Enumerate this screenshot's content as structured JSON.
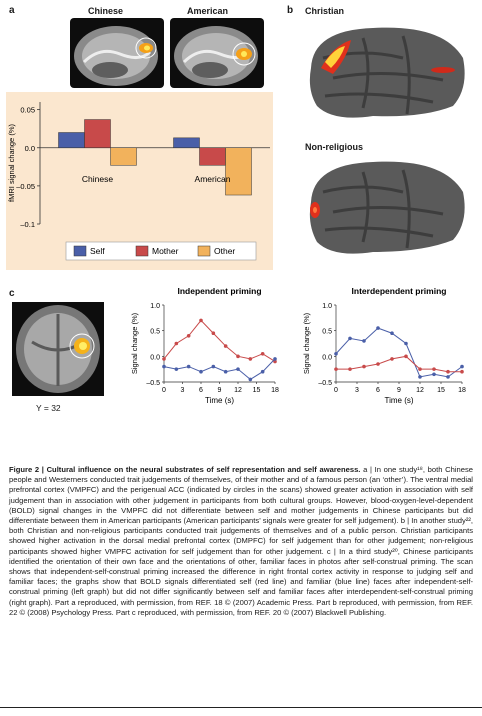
{
  "panel_a": {
    "letter": "a",
    "brain_labels": [
      "Chinese",
      "American"
    ],
    "chart_data": {
      "type": "bar",
      "categories": [
        "Chinese",
        "American"
      ],
      "series": [
        {
          "name": "Self",
          "values": [
            0.02,
            0.013
          ],
          "color": "#4a5fa8"
        },
        {
          "name": "Mother",
          "values": [
            0.037,
            -0.023
          ],
          "color": "#c84a4a"
        },
        {
          "name": "Other",
          "values": [
            -0.023,
            -0.062
          ],
          "color": "#f2b25c"
        }
      ],
      "ylabel": "fMRI signal change (%)",
      "ylim": [
        -0.1,
        0.06
      ],
      "yticks": [
        "0.05",
        "0.0",
        "–0.05",
        "–0.1"
      ],
      "ytick_values": [
        0.05,
        0,
        -0.05,
        -0.1
      ],
      "legend_position": "bottom"
    }
  },
  "panel_b": {
    "letter": "b",
    "labels": [
      "Christian",
      "Non-religious"
    ]
  },
  "panel_c": {
    "letter": "c",
    "scan_label": "Y = 32",
    "charts": [
      {
        "type": "line",
        "title": "Independent priming",
        "ylabel": "Signal change (%)",
        "xlabel": "Time (s)",
        "xticks": [
          0,
          3,
          6,
          9,
          12,
          15,
          18
        ],
        "yticks": [
          "1.0",
          "0.5",
          "0.0",
          "–0.5"
        ],
        "ytick_values": [
          1.0,
          0.5,
          0.0,
          -0.5
        ],
        "ylim": [
          -0.5,
          1.0
        ],
        "xlim": [
          0,
          18
        ],
        "x": [
          0,
          2,
          4,
          6,
          8,
          10,
          12,
          14,
          16,
          18
        ],
        "series": [
          {
            "name": "",
            "color": "#c84a4a",
            "values": [
              -0.05,
              0.25,
              0.4,
              0.7,
              0.45,
              0.2,
              0.0,
              -0.05,
              0.05,
              -0.1
            ]
          },
          {
            "name": "",
            "color": "#4a5fa8",
            "values": [
              -0.2,
              -0.25,
              -0.2,
              -0.3,
              -0.2,
              -0.3,
              -0.25,
              -0.45,
              -0.3,
              -0.05
            ]
          }
        ]
      },
      {
        "type": "line",
        "title": "Interdependent priming",
        "ylabel": "Signal change (%)",
        "xlabel": "Time (s)",
        "xticks": [
          0,
          3,
          6,
          9,
          12,
          15,
          18
        ],
        "yticks": [
          "1.0",
          "0.5",
          "0.0",
          "–0.5"
        ],
        "ytick_values": [
          1.0,
          0.5,
          0.0,
          -0.5
        ],
        "ylim": [
          -0.5,
          1.0
        ],
        "xlim": [
          0,
          18
        ],
        "x": [
          0,
          2,
          4,
          6,
          8,
          10,
          12,
          14,
          16,
          18
        ],
        "series": [
          {
            "name": "",
            "color": "#4a5fa8",
            "values": [
              0.05,
              0.35,
              0.3,
              0.55,
              0.45,
              0.25,
              -0.4,
              -0.35,
              -0.4,
              -0.2
            ]
          },
          {
            "name": "",
            "color": "#c84a4a",
            "values": [
              -0.25,
              -0.25,
              -0.2,
              -0.15,
              -0.05,
              0.0,
              -0.25,
              -0.25,
              -0.3,
              -0.3
            ]
          }
        ]
      }
    ]
  },
  "caption": {
    "figure_label": "Figure 2 | Cultural influence on the neural substrates of self representation and self awareness.",
    "text": "a | In one study¹⁸, both Chinese people and Westerners conducted trait judgements of themselves, of their mother and of a famous person (an ‘other’). The ventral medial prefrontal cortex (VMPFC) and the perigenual ACC (indicated by circles in the scans) showed greater activation in association with self judgement than in association with other judgement in participants from both cultural groups. However, blood-oxygen-level-dependent (BOLD) signal changes in the VMPFC did not differentiate between self and mother judgements in Chinese participants but did differentiate between them in American participants (American participants’ signals were greater for self judgement). b | In another study²², both Christian and non-religious participants conducted trait judgements of themselves and of a public person. Christian participants showed higher activation in the dorsal medial prefrontal cortex (DMPFC) for self judgement than for other judgement; non-religious participants showed higher VMPFC activation for self judgement than for other judgement. c | In a third study²⁰, Chinese participants identified the orientation of their own face and the orientations of other, familiar faces in photos after self-construal priming. The scan shows that independent-self-construal priming increased the difference in right frontal cortex activity in response to judging self and familiar faces; the graphs show that BOLD signals differentiated self (red line) and familiar (blue line) faces after independent-self-construal priming (left graph) but did not differ significantly between self and familiar faces after interdependent-self-construal priming (right graph). Part a reproduced, with permission, from REF. 18 © (2007) Academic Press. Part b reproduced, with permission, from REF. 22 © (2008) Psychology Press. Part c reproduced, with permission, from REF. 20 © (2007) Blackwell Publishing."
  }
}
